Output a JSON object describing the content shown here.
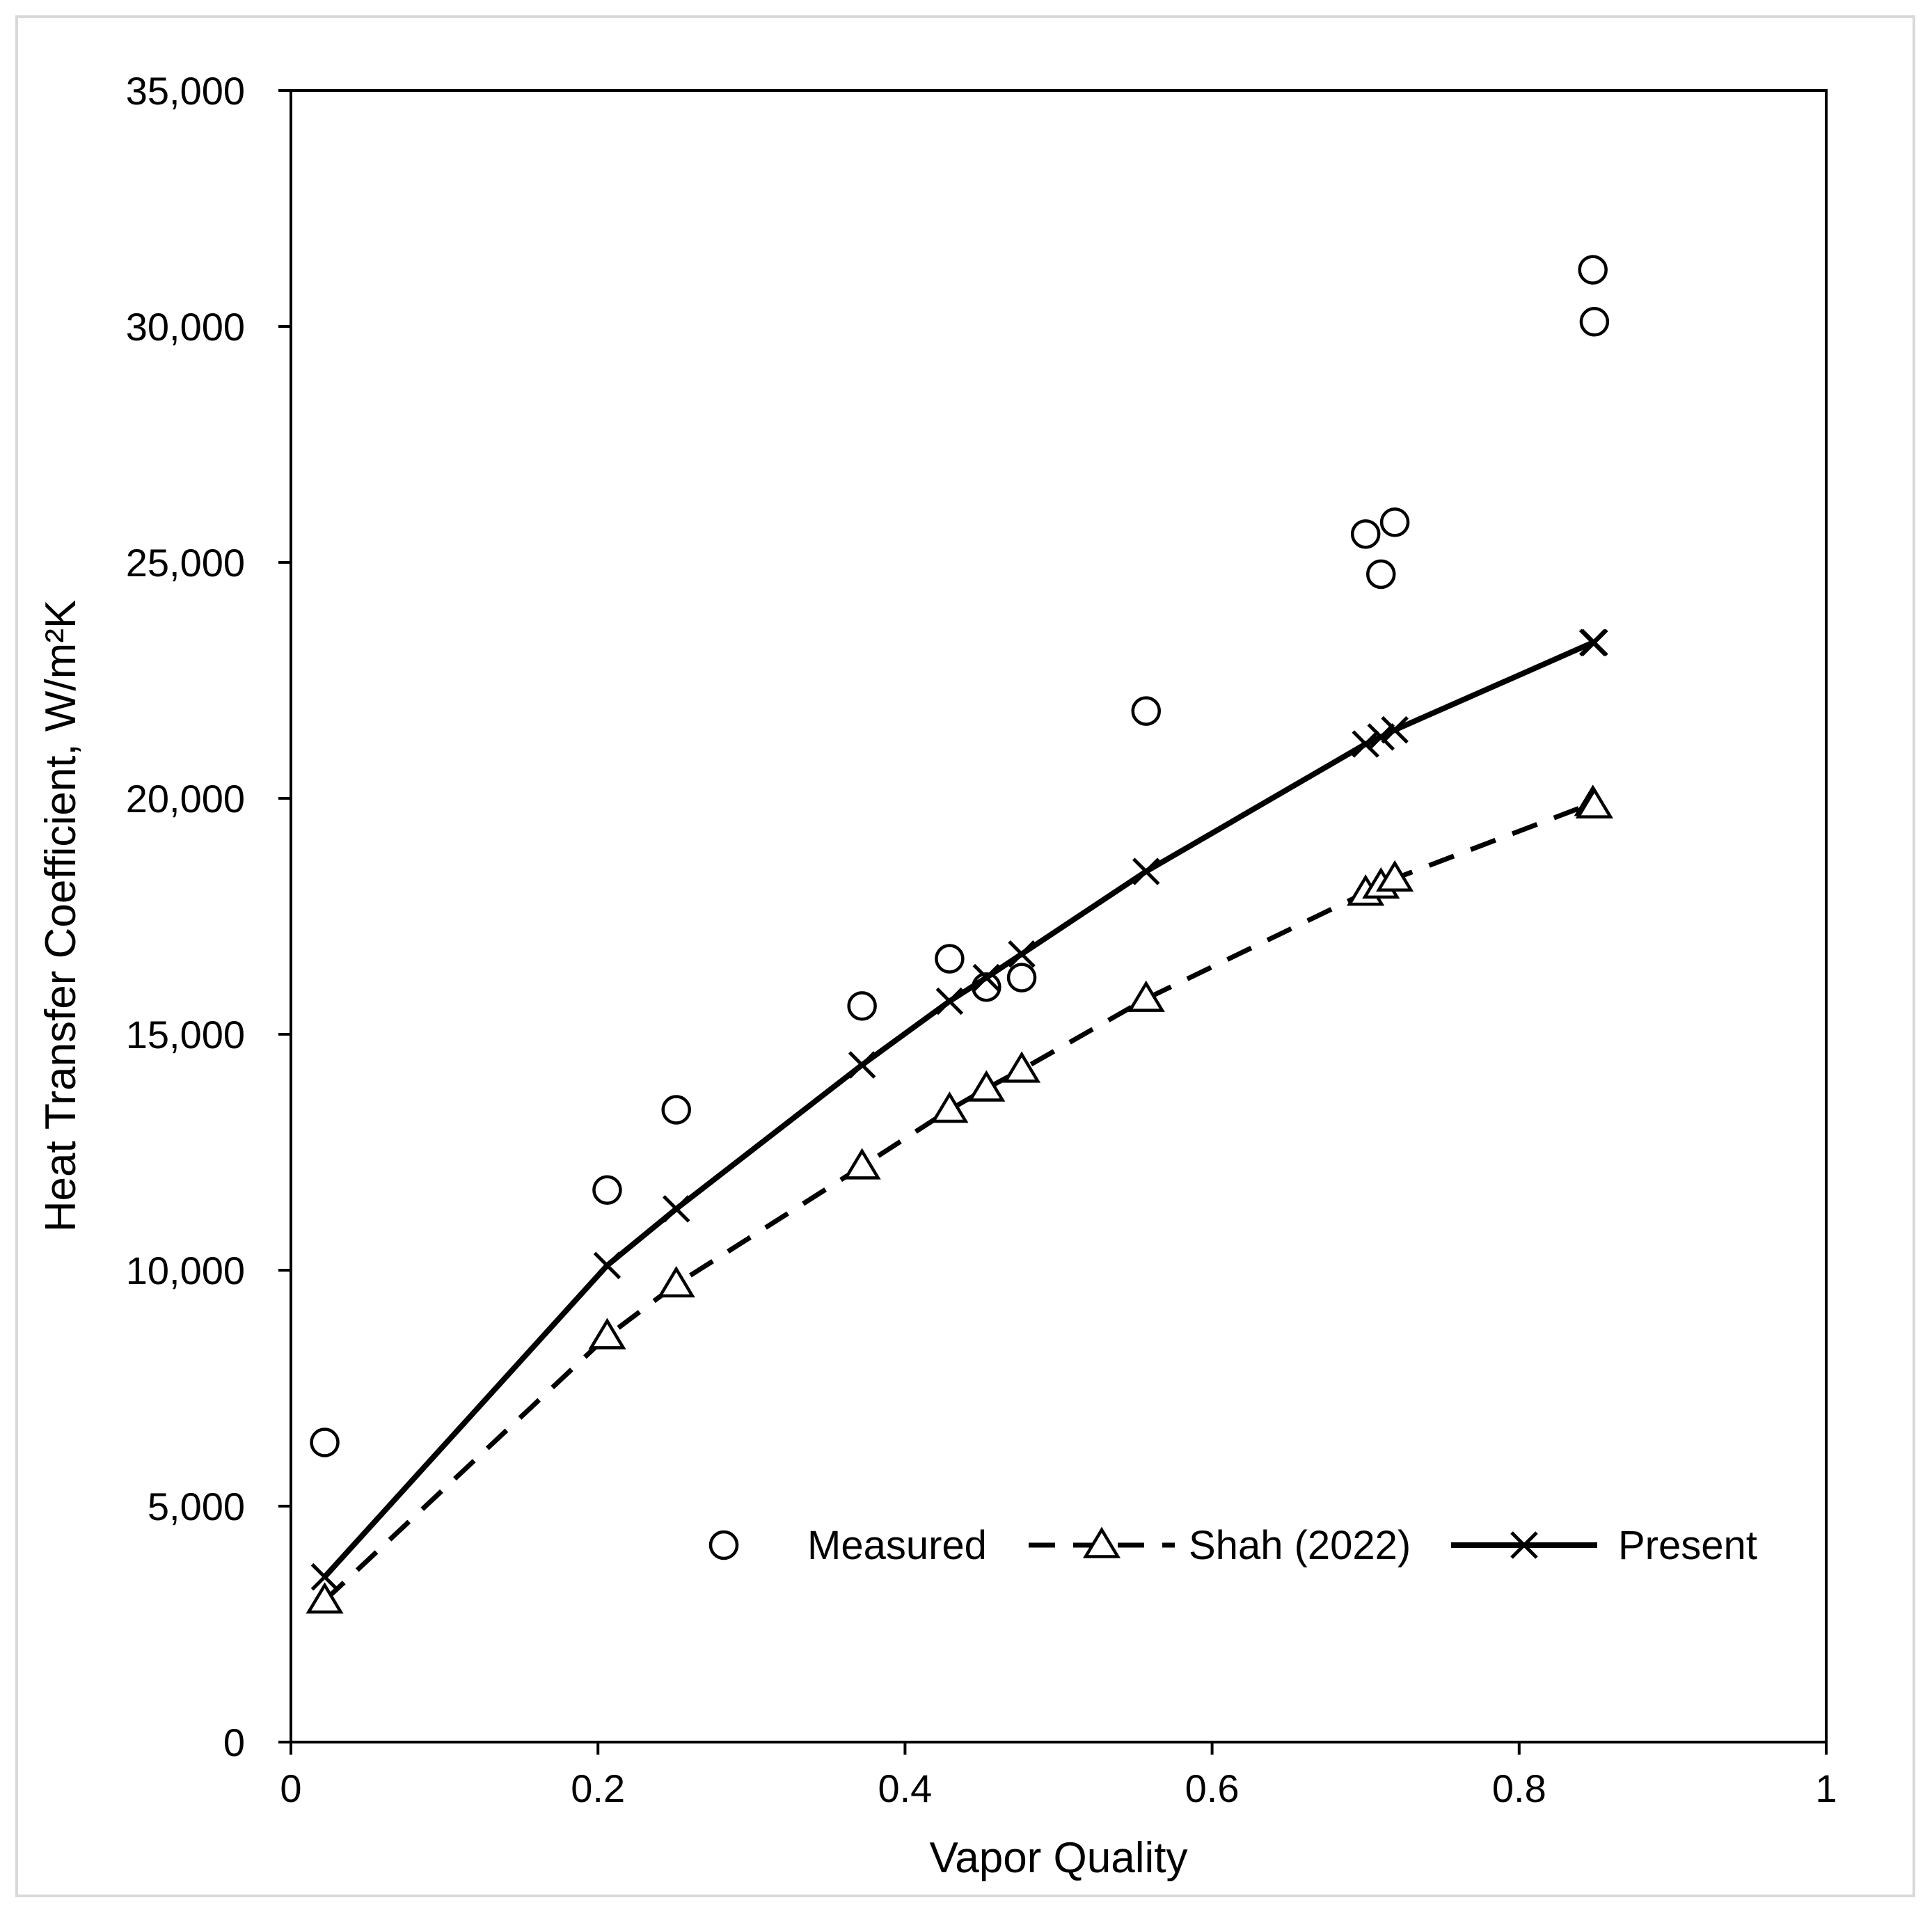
{
  "chart_data": {
    "type": "scatter",
    "title": "",
    "xlabel": "Vapor Quality",
    "ylabel": "Heat Transfer Coefficient, W/m²K",
    "xlim": [
      0,
      1
    ],
    "ylim": [
      0,
      35000
    ],
    "xticks": [
      0,
      0.2,
      0.4,
      0.6,
      0.8,
      1
    ],
    "xtick_labels": [
      "0",
      "0.2",
      "0.4",
      "0.6",
      "0.8",
      "1"
    ],
    "yticks": [
      0,
      5000,
      10000,
      15000,
      20000,
      25000,
      30000,
      35000
    ],
    "ytick_labels": [
      "0",
      "5,000",
      "10,000",
      "15,000",
      "20,000",
      "25,000",
      "30,000",
      "35,000"
    ],
    "grid": false,
    "legend_position": "bottom-right",
    "series": [
      {
        "name": "Measured",
        "marker": "circle",
        "line": "none",
        "x": [
          0.022,
          0.206,
          0.251,
          0.372,
          0.429,
          0.453,
          0.476,
          0.557,
          0.7,
          0.71,
          0.719,
          0.848,
          0.849
        ],
        "y": [
          6350,
          11700,
          13400,
          15600,
          16600,
          16000,
          16200,
          21850,
          25600,
          24750,
          25850,
          31200,
          30100
        ]
      },
      {
        "name": "Shah (2022)",
        "marker": "triangle",
        "line": "dashed",
        "x": [
          0.022,
          0.206,
          0.251,
          0.372,
          0.429,
          0.453,
          0.476,
          0.557,
          0.7,
          0.71,
          0.719,
          0.848,
          0.849
        ],
        "y": [
          3000,
          8600,
          9700,
          12200,
          13400,
          13850,
          14250,
          15750,
          18000,
          18150,
          18300,
          19900,
          19850
        ]
      },
      {
        "name": "Present",
        "marker": "x",
        "line": "solid",
        "x": [
          0.022,
          0.206,
          0.251,
          0.372,
          0.429,
          0.453,
          0.476,
          0.557,
          0.7,
          0.71,
          0.719,
          0.848,
          0.849
        ],
        "y": [
          3500,
          10100,
          11300,
          14350,
          15700,
          16200,
          16700,
          18450,
          21150,
          21300,
          21450,
          23300,
          23300
        ]
      }
    ]
  }
}
